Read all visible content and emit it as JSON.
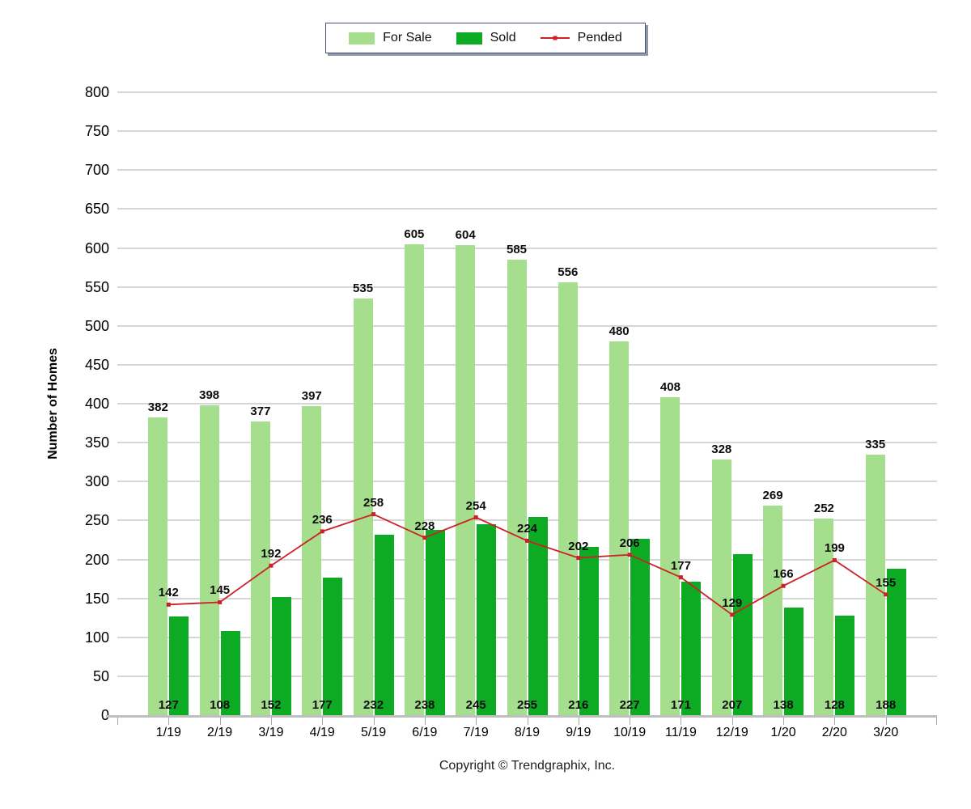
{
  "chart_data": {
    "type": "bar",
    "title": "",
    "xlabel": "",
    "ylabel": "Number of Homes",
    "ylim": [
      0,
      800
    ],
    "ytick_step": 50,
    "grid": true,
    "legend_position": "top-center",
    "categories": [
      "1/19",
      "2/19",
      "3/19",
      "4/19",
      "5/19",
      "6/19",
      "7/19",
      "8/19",
      "9/19",
      "10/19",
      "11/19",
      "12/19",
      "1/20",
      "2/20",
      "3/20"
    ],
    "series": [
      {
        "name": "For Sale",
        "kind": "bar",
        "color": "#A5DE8D",
        "values": [
          382,
          398,
          377,
          397,
          535,
          605,
          604,
          585,
          556,
          480,
          408,
          328,
          269,
          252,
          335
        ]
      },
      {
        "name": "Sold",
        "kind": "bar",
        "color": "#0CAB23",
        "values": [
          127,
          108,
          152,
          177,
          232,
          238,
          245,
          255,
          216,
          227,
          171,
          207,
          138,
          128,
          188
        ]
      },
      {
        "name": "Pended",
        "kind": "line",
        "color": "#CC2126",
        "values": [
          142,
          145,
          192,
          236,
          258,
          228,
          254,
          224,
          202,
          206,
          177,
          129,
          166,
          199,
          155
        ]
      }
    ]
  },
  "footer": {
    "copyright": "Copyright © Trendgraphix, Inc."
  }
}
